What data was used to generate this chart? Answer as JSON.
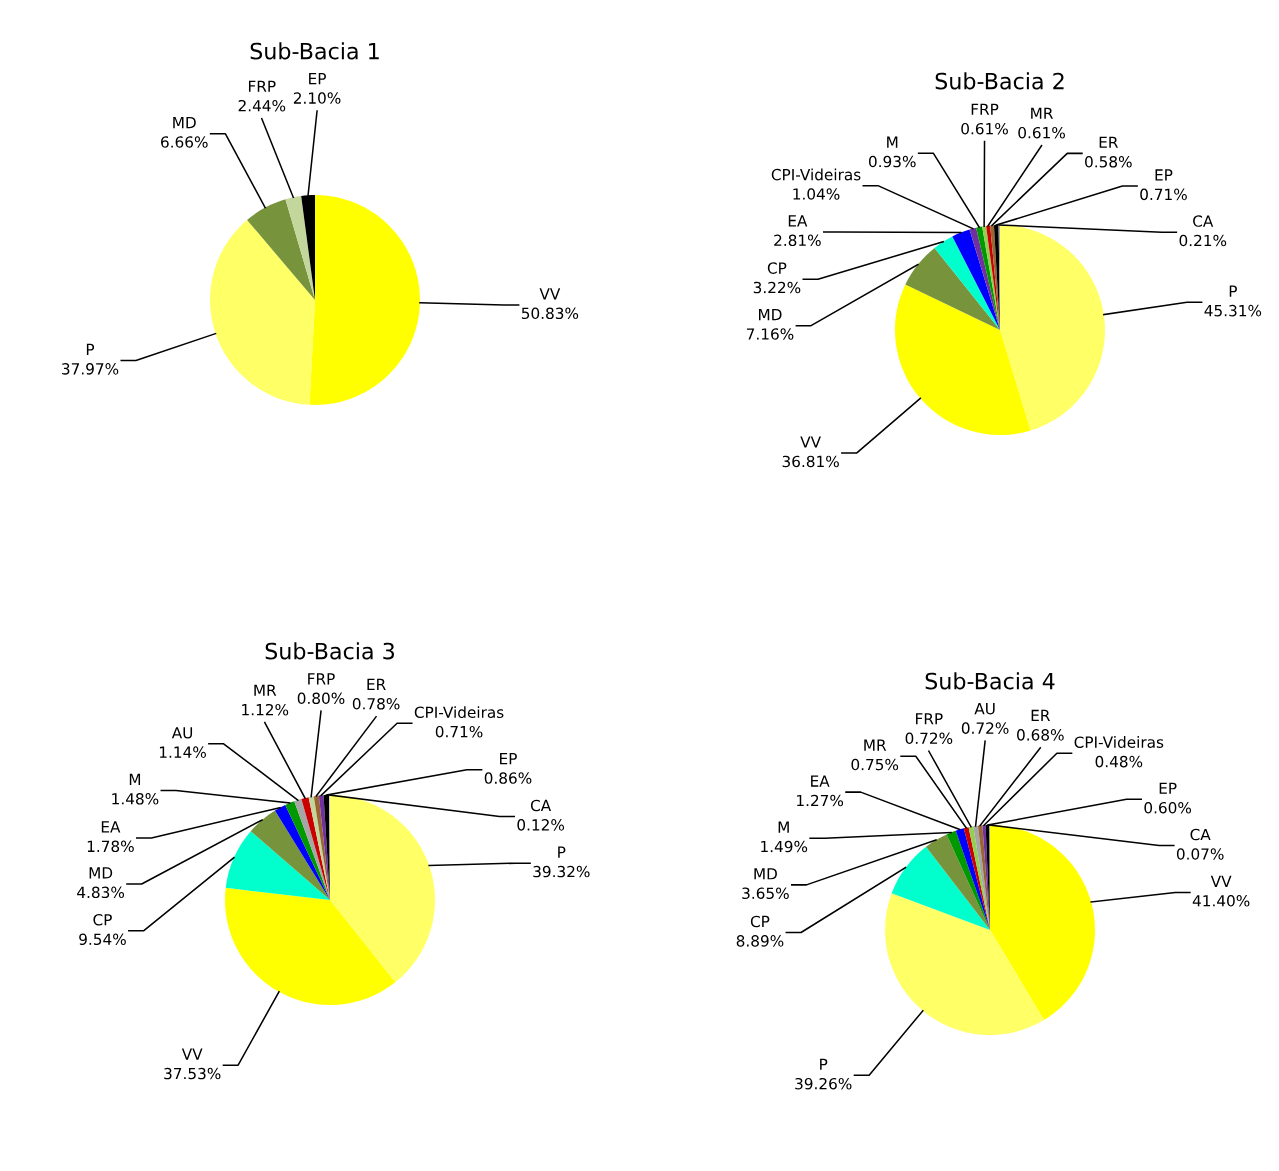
{
  "chart_data": [
    {
      "type": "pie",
      "title": "Sub-Bacia 1",
      "categories": [
        "VV",
        "P",
        "MD",
        "FRP",
        "EP"
      ],
      "values": [
        50.83,
        37.97,
        6.66,
        2.44,
        2.1
      ],
      "value_labels": [
        "50.83%",
        "37.97%",
        "6.66%",
        "2.44%",
        "2.10%"
      ],
      "colors": [
        "#ffff00",
        "#ffff66",
        "#77933c",
        "#c3d69b",
        "#000000"
      ]
    },
    {
      "type": "pie",
      "title": "Sub-Bacia 2",
      "categories": [
        "P",
        "VV",
        "MD",
        "CP",
        "EA",
        "CPI-Videiras",
        "M",
        "FRP",
        "MR",
        "ER",
        "EP",
        "CA"
      ],
      "values": [
        45.31,
        36.81,
        7.16,
        3.22,
        2.81,
        1.04,
        0.93,
        0.61,
        0.61,
        0.58,
        0.71,
        0.21
      ],
      "value_labels": [
        "45.31%",
        "36.81%",
        "7.16%",
        "3.22%",
        "2.81%",
        "1.04%",
        "0.93%",
        "0.61%",
        "0.61%",
        "0.58%",
        "0.71%",
        "0.21%"
      ],
      "colors": [
        "#ffff66",
        "#ffff00",
        "#77933c",
        "#00ffcc",
        "#0000ff",
        "#7030a0",
        "#009900",
        "#92d050",
        "#cc0000",
        "#996633",
        "#000000",
        "#a6a6a6"
      ]
    },
    {
      "type": "pie",
      "title": "Sub-Bacia 3",
      "categories": [
        "P",
        "VV",
        "CP",
        "MD",
        "EA",
        "M",
        "AU",
        "MR",
        "FRP",
        "ER",
        "CPI-Videiras",
        "EP",
        "CA"
      ],
      "values": [
        39.32,
        37.53,
        9.54,
        4.83,
        1.78,
        1.48,
        1.14,
        1.12,
        0.8,
        0.78,
        0.71,
        0.86,
        0.12
      ],
      "value_labels": [
        "39.32%",
        "37.53%",
        "9.54%",
        "4.83%",
        "1.78%",
        "1.48%",
        "1.14%",
        "1.12%",
        "0.80%",
        "0.78%",
        "0.71%",
        "0.86%",
        "0.12%"
      ],
      "colors": [
        "#ffff66",
        "#ffff00",
        "#00ffcc",
        "#77933c",
        "#0000ff",
        "#009900",
        "#a6a6a6",
        "#cc0000",
        "#c3d69b",
        "#996633",
        "#7030a0",
        "#000000",
        "#d9d9d9"
      ]
    },
    {
      "type": "pie",
      "title": "Sub-Bacia 4",
      "categories": [
        "VV",
        "P",
        "CP",
        "MD",
        "M",
        "EA",
        "MR",
        "FRP",
        "AU",
        "ER",
        "CPI-Videiras",
        "EP",
        "CA"
      ],
      "values": [
        41.4,
        39.26,
        8.89,
        3.65,
        1.49,
        1.27,
        0.75,
        0.72,
        0.72,
        0.68,
        0.48,
        0.6,
        0.07
      ],
      "value_labels": [
        "41.40%",
        "39.26%",
        "8.89%",
        "3.65%",
        "1.49%",
        "1.27%",
        "0.75%",
        "0.72%",
        "0.72%",
        "0.68%",
        "0.48%",
        "0.60%",
        "0.07%"
      ],
      "colors": [
        "#ffff00",
        "#ffff66",
        "#00ffcc",
        "#77933c",
        "#009900",
        "#0000ff",
        "#cc0000",
        "#92d050",
        "#a6a6a6",
        "#996633",
        "#7030a0",
        "#000000",
        "#d9d9d9"
      ]
    }
  ]
}
